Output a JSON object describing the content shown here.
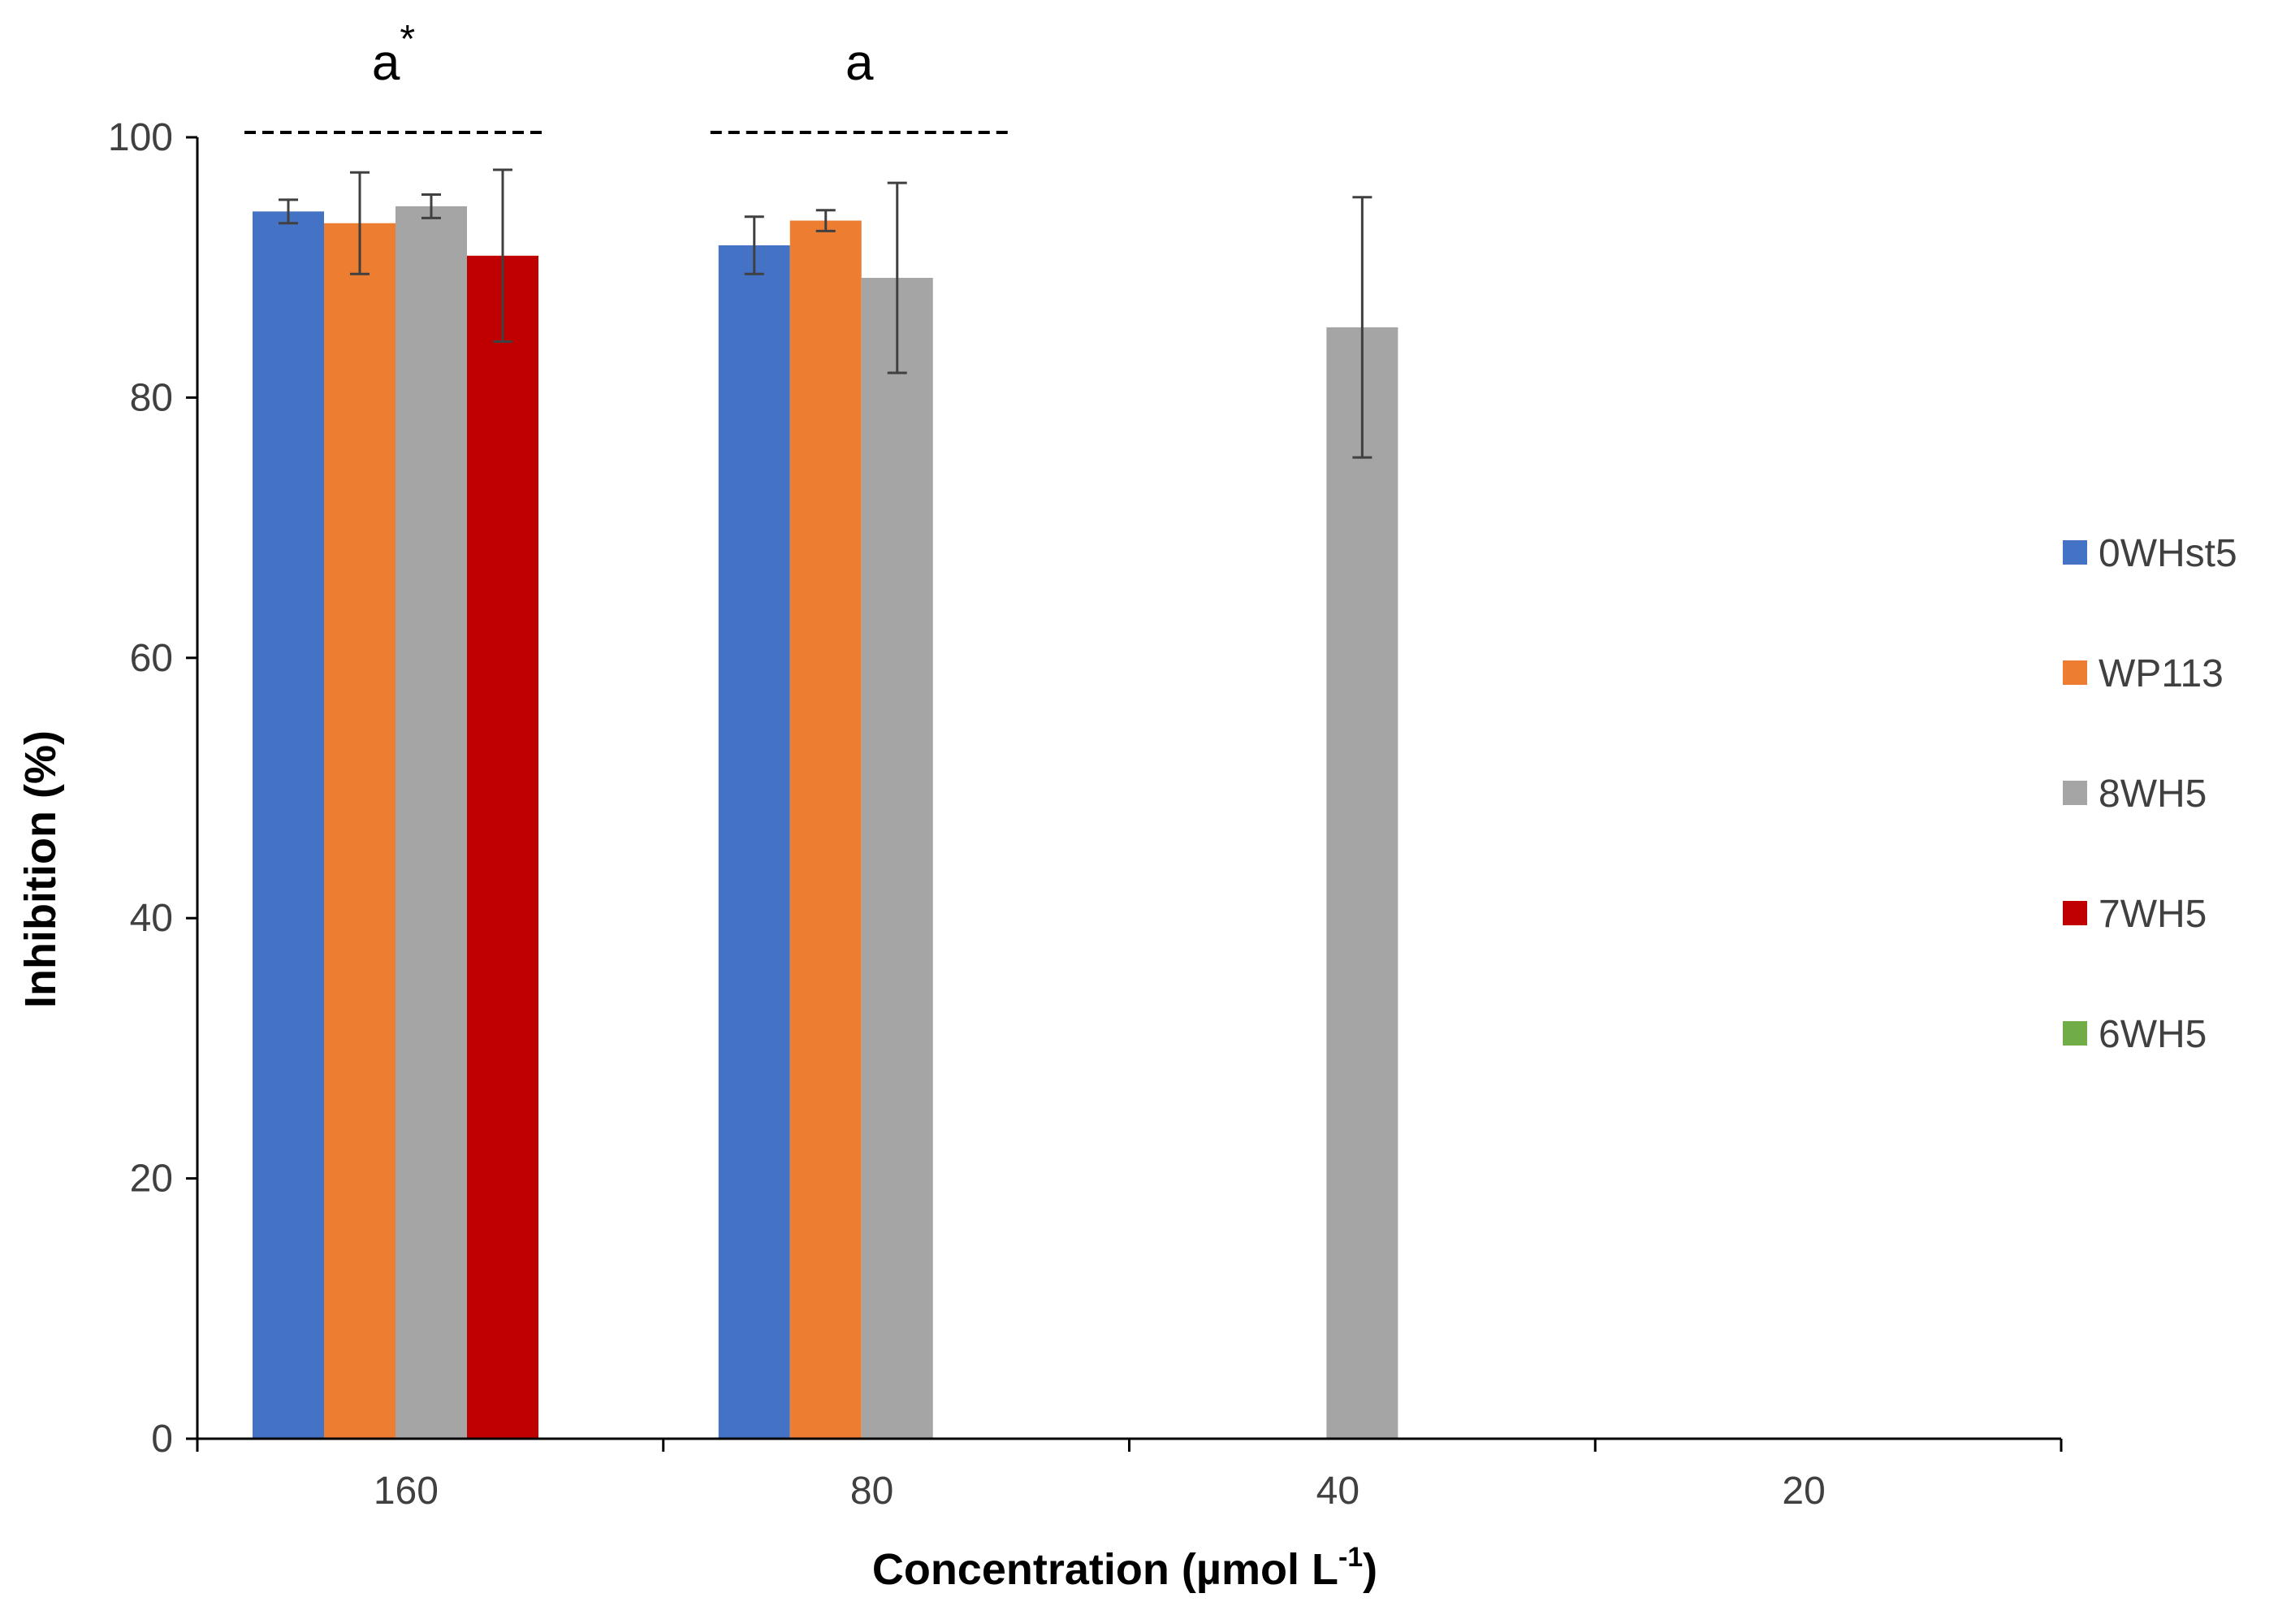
{
  "chart_data": {
    "type": "bar",
    "title": "",
    "xlabel": "Concentration (µmol L",
    "xlabel_sup": "-1",
    "xlabel_suffix": ")",
    "ylabel": "Inhibition  (%)",
    "ylim": [
      0,
      100
    ],
    "yticks": [
      "0",
      "20",
      "40",
      "60",
      "80",
      "100"
    ],
    "grid": false,
    "legend_position": "right",
    "categories": [
      "160",
      "80",
      "40",
      "20"
    ],
    "series": [
      {
        "name": "0WHst5",
        "color": "#4472C4",
        "values": [
          94.3,
          91.7,
          null,
          null
        ],
        "errors": [
          0.9,
          2.2,
          null,
          null
        ]
      },
      {
        "name": "WP113",
        "color": "#ED7D31",
        "values": [
          93.4,
          93.6,
          null,
          null
        ],
        "errors": [
          3.9,
          0.8,
          null,
          null
        ]
      },
      {
        "name": "8WH5",
        "color": "#A5A5A5",
        "values": [
          94.7,
          89.2,
          85.4,
          null
        ],
        "errors": [
          0.9,
          7.3,
          10.0,
          null
        ]
      },
      {
        "name": "7WH5",
        "color": "#C00000",
        "values": [
          90.9,
          null,
          null,
          null
        ],
        "errors": [
          6.6,
          null,
          null,
          null
        ]
      },
      {
        "name": "6WH5",
        "color": "#70AD47",
        "values": [
          null,
          null,
          null,
          null
        ],
        "errors": [
          null,
          null,
          null,
          null
        ]
      }
    ],
    "annotations": [
      {
        "category": "160",
        "text": "a",
        "sup": "*"
      },
      {
        "category": "80",
        "text": "a",
        "sup": ""
      }
    ]
  }
}
